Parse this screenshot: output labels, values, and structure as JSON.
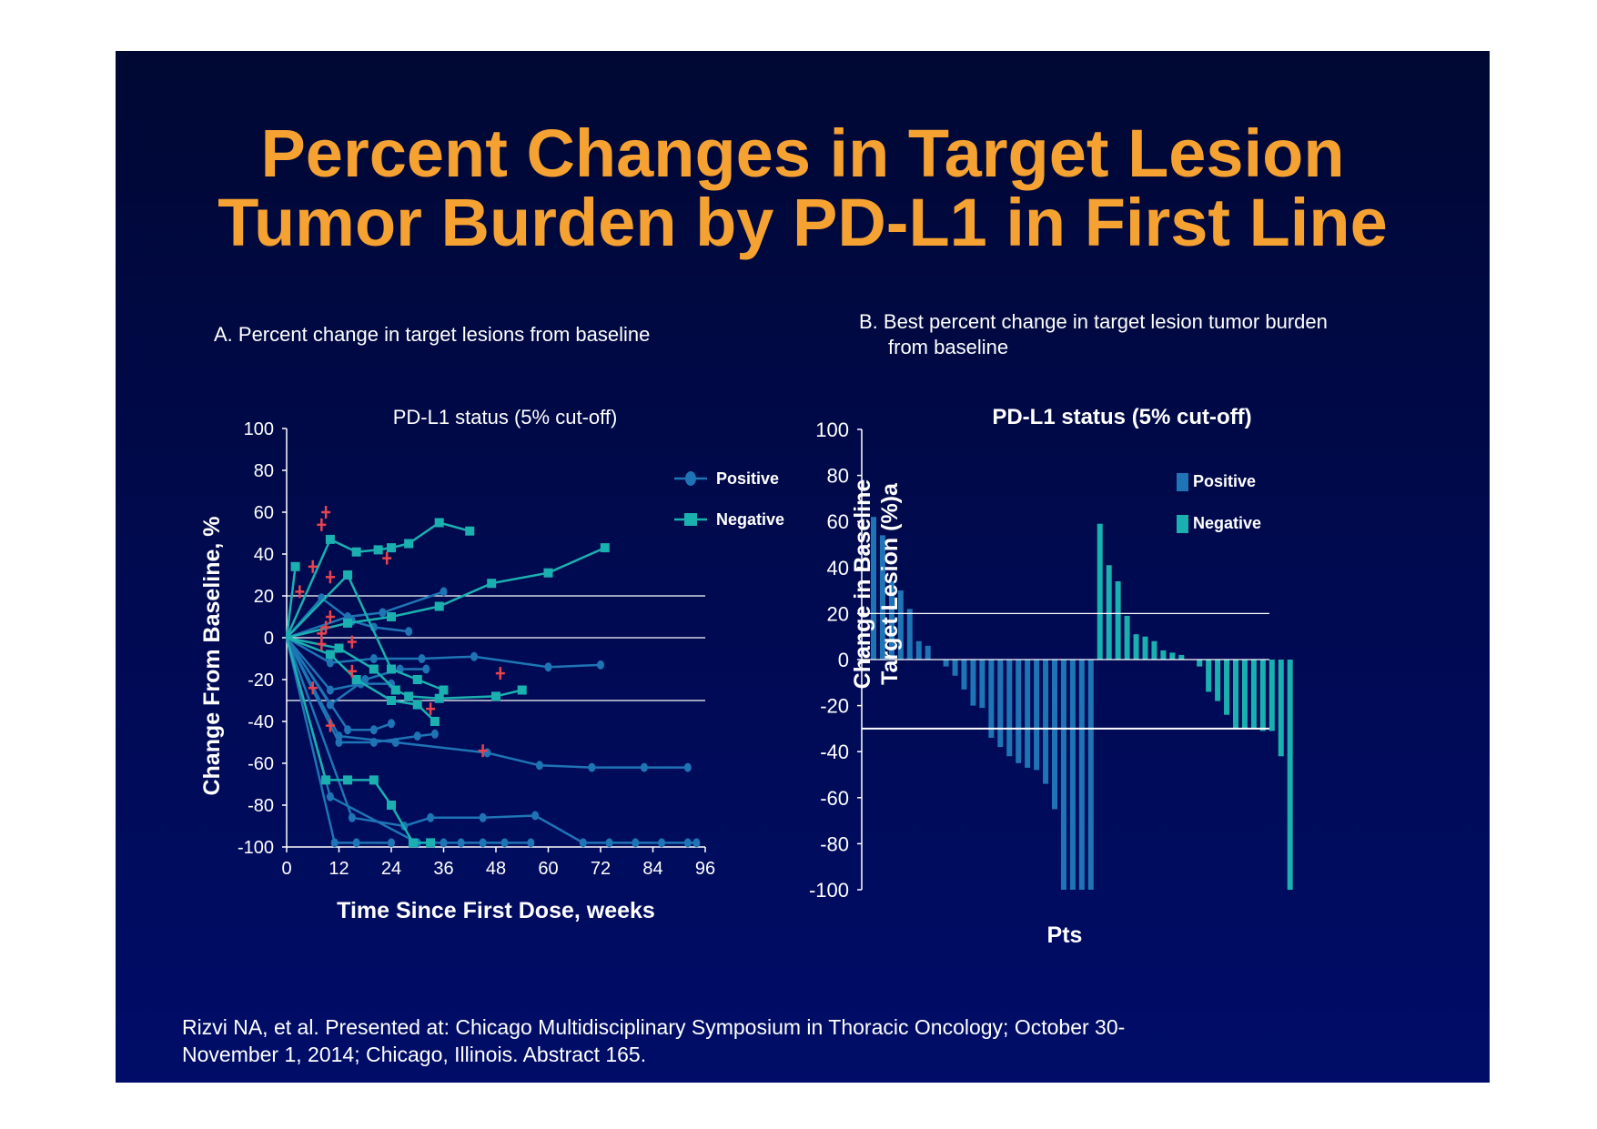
{
  "slide": {
    "title_line1": "Percent Changes in Target Lesion",
    "title_line2": "Tumor Burden by PD-L1 in First Line",
    "citation_line1": "Rizvi NA, et al. Presented at: Chicago Multidisciplinary Symposium in Thoracic Oncology; October 30-",
    "citation_line2": "November 1, 2014; Chicago, Illinois. Abstract 165."
  },
  "colors": {
    "background": "#000a52",
    "title": "#f5a232",
    "positive": "#1e74b4",
    "negative": "#1bb0b0",
    "censor": "#e8434f",
    "text": "#ffffff"
  },
  "chart_data": [
    {
      "type": "line",
      "panel_title": "A. Percent change in target lesions from baseline",
      "legend_title": "PD-L1 status (5% cut-off)",
      "xlabel": "Time Since First Dose, weeks",
      "ylabel": "Change From Baseline, %",
      "xlim": [
        0,
        96
      ],
      "ylim": [
        -100,
        100
      ],
      "xticks": [
        0,
        12,
        24,
        36,
        48,
        60,
        72,
        84,
        96
      ],
      "yticks": [
        100,
        80,
        60,
        40,
        20,
        0,
        -20,
        -40,
        -60,
        -80,
        -100
      ],
      "reference_lines": [
        20,
        0,
        -30
      ],
      "legend": [
        {
          "name": "Positive",
          "marker": "circle",
          "color": "#1e74b4"
        },
        {
          "name": "Negative",
          "marker": "square",
          "color": "#1bb0b0"
        }
      ],
      "series": [
        {
          "name": "Positive",
          "marker": "circle",
          "x": [
            0,
            10,
            20,
            31,
            43,
            60,
            72
          ],
          "y": [
            0,
            -12,
            -10,
            -10,
            -9,
            -14,
            -13
          ]
        },
        {
          "name": "Positive",
          "marker": "circle",
          "x": [
            0,
            12,
            25,
            46,
            58,
            70,
            82,
            92
          ],
          "y": [
            0,
            -47,
            -50,
            -55,
            -61,
            -62,
            -62,
            -62
          ]
        },
        {
          "name": "Positive",
          "marker": "circle",
          "x": [
            0,
            15,
            27,
            33,
            45,
            57,
            68,
            74,
            80,
            86,
            92,
            94
          ],
          "y": [
            0,
            -86,
            -90,
            -86,
            -86,
            -85,
            -98,
            -98,
            -98,
            -98,
            -98,
            -98
          ]
        },
        {
          "name": "Positive",
          "marker": "circle",
          "x": [
            0,
            10,
            30,
            36,
            40,
            45,
            50,
            56
          ],
          "y": [
            0,
            -76,
            -98,
            -98,
            -98,
            -98,
            -98,
            -98
          ]
        },
        {
          "name": "Positive",
          "marker": "circle",
          "x": [
            0,
            11,
            16,
            24
          ],
          "y": [
            0,
            -98,
            -98,
            -98
          ]
        },
        {
          "name": "Positive",
          "marker": "circle",
          "x": [
            0,
            14,
            20,
            24
          ],
          "y": [
            0,
            -44,
            -44,
            -41
          ]
        },
        {
          "name": "Positive",
          "marker": "circle",
          "x": [
            0,
            12,
            20,
            30,
            34
          ],
          "y": [
            0,
            -50,
            -50,
            -47,
            -46
          ]
        },
        {
          "name": "Positive",
          "marker": "circle",
          "x": [
            0,
            14,
            22,
            36
          ],
          "y": [
            0,
            10,
            12,
            22
          ]
        },
        {
          "name": "Positive",
          "marker": "circle",
          "x": [
            0,
            10,
            17,
            24
          ],
          "y": [
            0,
            -25,
            -22,
            -22
          ]
        },
        {
          "name": "Positive",
          "marker": "circle",
          "x": [
            0,
            8,
            15,
            20,
            28
          ],
          "y": [
            0,
            19,
            8,
            5,
            3
          ]
        },
        {
          "name": "Positive",
          "marker": "circle",
          "x": [
            0,
            10,
            18,
            26,
            32
          ],
          "y": [
            0,
            -32,
            -20,
            -15,
            -15
          ]
        },
        {
          "name": "Negative",
          "marker": "square",
          "x": [
            0,
            2
          ],
          "y": [
            0,
            34
          ]
        },
        {
          "name": "Negative",
          "marker": "square",
          "x": [
            0,
            10,
            16,
            21,
            24,
            28,
            35,
            42
          ],
          "y": [
            0,
            47,
            41,
            42,
            43,
            45,
            55,
            51
          ]
        },
        {
          "name": "Negative",
          "marker": "square",
          "x": [
            0,
            14,
            24,
            35,
            47,
            60,
            73
          ],
          "y": [
            0,
            7,
            10,
            15,
            26,
            31,
            43
          ]
        },
        {
          "name": "Negative",
          "marker": "square",
          "x": [
            0,
            9,
            14,
            20,
            24,
            29,
            33
          ],
          "y": [
            0,
            -68,
            -68,
            -68,
            -80,
            -98,
            -98
          ]
        },
        {
          "name": "Negative",
          "marker": "square",
          "x": [
            0,
            12,
            20,
            25,
            28,
            35,
            48,
            54
          ],
          "y": [
            0,
            -5,
            -15,
            -25,
            -28,
            -29,
            -28,
            -25
          ]
        },
        {
          "name": "Negative",
          "marker": "square",
          "x": [
            0,
            14,
            24,
            30,
            36
          ],
          "y": [
            0,
            30,
            -15,
            -20,
            -25
          ]
        },
        {
          "name": "Negative",
          "marker": "square",
          "x": [
            0,
            10,
            16,
            24,
            30,
            34
          ],
          "y": [
            0,
            -8,
            -20,
            -30,
            -32,
            -40
          ]
        }
      ],
      "censored_points": {
        "x": [
          3,
          6,
          8,
          9,
          10,
          10,
          9,
          6,
          8,
          8,
          10,
          15,
          15,
          23,
          33,
          45,
          49
        ],
        "y": [
          22,
          34,
          54,
          60,
          29,
          10,
          5,
          -24,
          -3,
          2,
          -42,
          -16,
          -2,
          38,
          -34,
          -54,
          -17
        ]
      }
    },
    {
      "type": "bar",
      "panel_title_line1": "B. Best percent change in target lesion tumor burden",
      "panel_title_line2": "from baseline",
      "legend_title": "PD-L1 status (5% cut-off)",
      "xlabel": "Pts",
      "ylabel_line1": "Change in Baseline",
      "ylabel_line2": "Target Lesion (%)a",
      "ylim": [
        -100,
        100
      ],
      "yticks": [
        100,
        80,
        60,
        40,
        20,
        0,
        -20,
        -40,
        -60,
        -80,
        -100
      ],
      "reference_lines": [
        20,
        0,
        -30
      ],
      "legend": [
        {
          "name": "Positive",
          "color": "#1e74b4"
        },
        {
          "name": "Negative",
          "color": "#1bb0b0"
        }
      ],
      "series": [
        {
          "name": "Positive",
          "values": [
            62,
            54,
            34,
            30,
            22,
            8,
            6,
            0,
            -3,
            -7,
            -13,
            -20,
            -21,
            -34,
            -38,
            -42,
            -45,
            -47,
            -48,
            -54,
            -65,
            -100,
            -100,
            -100,
            -100
          ]
        },
        {
          "name": "Negative",
          "values": [
            59,
            41,
            34,
            19,
            11,
            10,
            8,
            4,
            3,
            2,
            0,
            -3,
            -14,
            -18,
            -24,
            -30,
            -30,
            -30,
            -31,
            -31,
            -42,
            -100
          ]
        }
      ]
    }
  ]
}
